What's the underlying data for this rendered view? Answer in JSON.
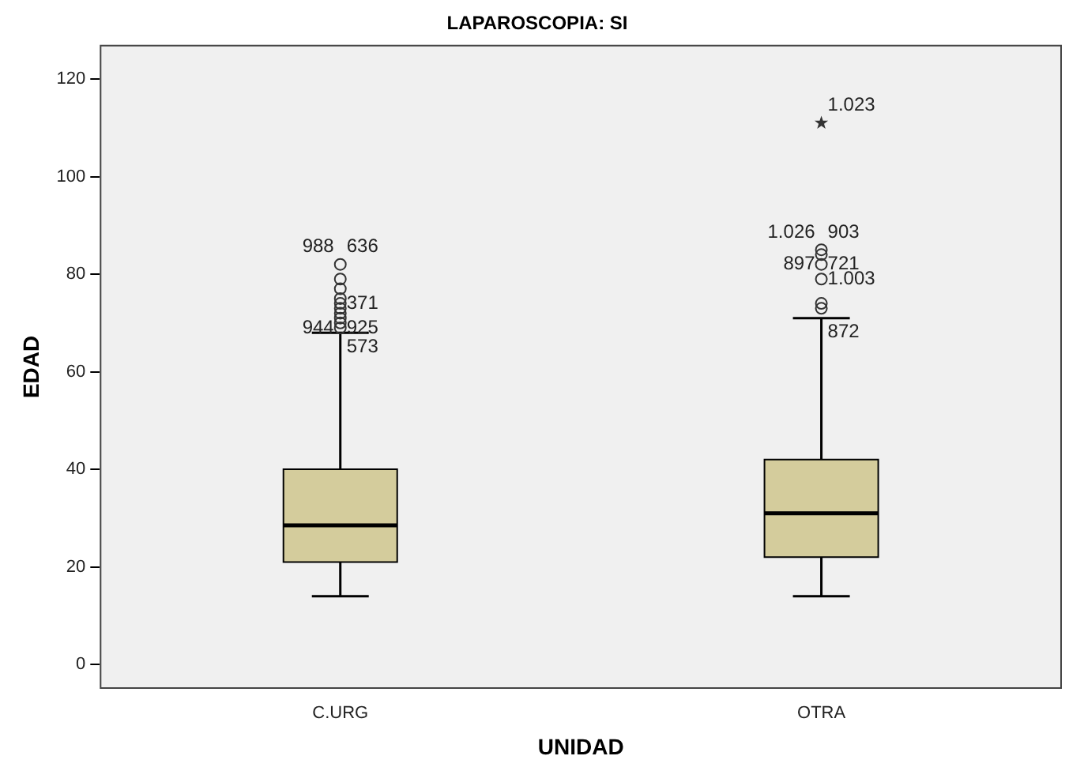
{
  "chart_data": {
    "type": "box",
    "title": "LAPAROSCOPIA: SI",
    "xlabel": "UNIDAD",
    "ylabel": "EDAD",
    "categories": [
      "C.URG",
      "OTRA"
    ],
    "color": "#d4cc9c",
    "boxes": [
      {
        "low": 14,
        "q1": 21,
        "median": 28.5,
        "q3": 40,
        "high": 68
      },
      {
        "low": 14,
        "q1": 22,
        "median": 31,
        "q3": 42,
        "high": 71
      }
    ],
    "series": [
      {
        "type": "scatter",
        "color": "#333333",
        "marker": "circle",
        "x": [
          "C.URG",
          "C.URG",
          "C.URG",
          "C.URG",
          "C.URG",
          "C.URG",
          "C.URG",
          "C.URG",
          "C.URG",
          "C.URG",
          "OTRA",
          "OTRA",
          "OTRA",
          "OTRA",
          "OTRA",
          "OTRA",
          "OTRA"
        ],
        "values": [
          82,
          79,
          77,
          75,
          74,
          73,
          72,
          71,
          70,
          69,
          111,
          85,
          84,
          82,
          79,
          74,
          73
        ]
      }
    ],
    "ylim": [
      -5,
      127
    ],
    "yticks": [
      0,
      20,
      40,
      60,
      80,
      100,
      120
    ],
    "grid": false,
    "legend": false,
    "annotations": [
      {
        "text": "988",
        "x": "C.URG",
        "y": 82
      },
      {
        "text": "636",
        "x": "C.URG",
        "y": 82
      },
      {
        "text": "371",
        "x": "C.URG",
        "y": 74
      },
      {
        "text": "944",
        "x": "C.URG",
        "y": 69
      },
      {
        "text": "925",
        "x": "C.URG",
        "y": 69
      },
      {
        "text": "573",
        "x": "C.URG",
        "y": 68
      },
      {
        "text": "1.023",
        "x": "OTRA",
        "y": 111
      },
      {
        "text": "1.026",
        "x": "OTRA",
        "y": 85
      },
      {
        "text": "903",
        "x": "OTRA",
        "y": 85
      },
      {
        "text": "897",
        "x": "OTRA",
        "y": 82
      },
      {
        "text": "721",
        "x": "OTRA",
        "y": 82
      },
      {
        "text": "1.003",
        "x": "OTRA",
        "y": 79
      },
      {
        "text": "872",
        "x": "OTRA",
        "y": 71
      }
    ]
  }
}
